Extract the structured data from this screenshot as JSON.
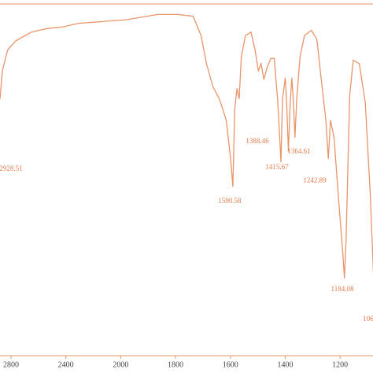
{
  "chart_data": {
    "type": "line",
    "x": [
      2880,
      2863,
      2823,
      2765,
      2650,
      2536,
      2421,
      2306,
      2134,
      1980,
      1865,
      1793,
      1736,
      1707,
      1687,
      1664,
      1640,
      1615,
      1598,
      1591,
      1584,
      1576,
      1568,
      1560,
      1545,
      1525,
      1510,
      1498,
      1488,
      1478,
      1466,
      1452,
      1440,
      1428,
      1420,
      1415.67,
      1410,
      1400,
      1394,
      1388.46,
      1383,
      1376,
      1370,
      1364.61,
      1358,
      1346,
      1330,
      1305,
      1285,
      1265,
      1252,
      1242.89,
      1235,
      1222,
      1205,
      1190,
      1184.08,
      1178,
      1165,
      1152,
      1130,
      1108,
      1090,
      1075
    ],
    "values": [
      73,
      81,
      87,
      89.5,
      92,
      93,
      93.5,
      94.5,
      95,
      95.5,
      97,
      97,
      96.5,
      91,
      83,
      76.5,
      73,
      67,
      55,
      48,
      70,
      76,
      73,
      85,
      91,
      92,
      87,
      81,
      83,
      78.5,
      82,
      84.5,
      84.5,
      73,
      62,
      55,
      73,
      79,
      70,
      58,
      70,
      79,
      72,
      62,
      73,
      85,
      91,
      92.5,
      90,
      76,
      67,
      56,
      67,
      62,
      44,
      29,
      22,
      33,
      74,
      84,
      83,
      72,
      46,
      17
    ],
    "color": "#e8956a",
    "xlim": [
      2880,
      1080
    ],
    "x_scale_break": 2000,
    "xticks": [
      2800,
      2400,
      2000,
      1800,
      1600,
      1400,
      1200
    ],
    "ylim": [
      0,
      100
    ],
    "annotations": [
      "2928.51",
      "1590.58",
      "1388.46",
      "1415.67",
      "1364.61",
      "1242.89",
      "1184.08",
      "106"
    ]
  }
}
